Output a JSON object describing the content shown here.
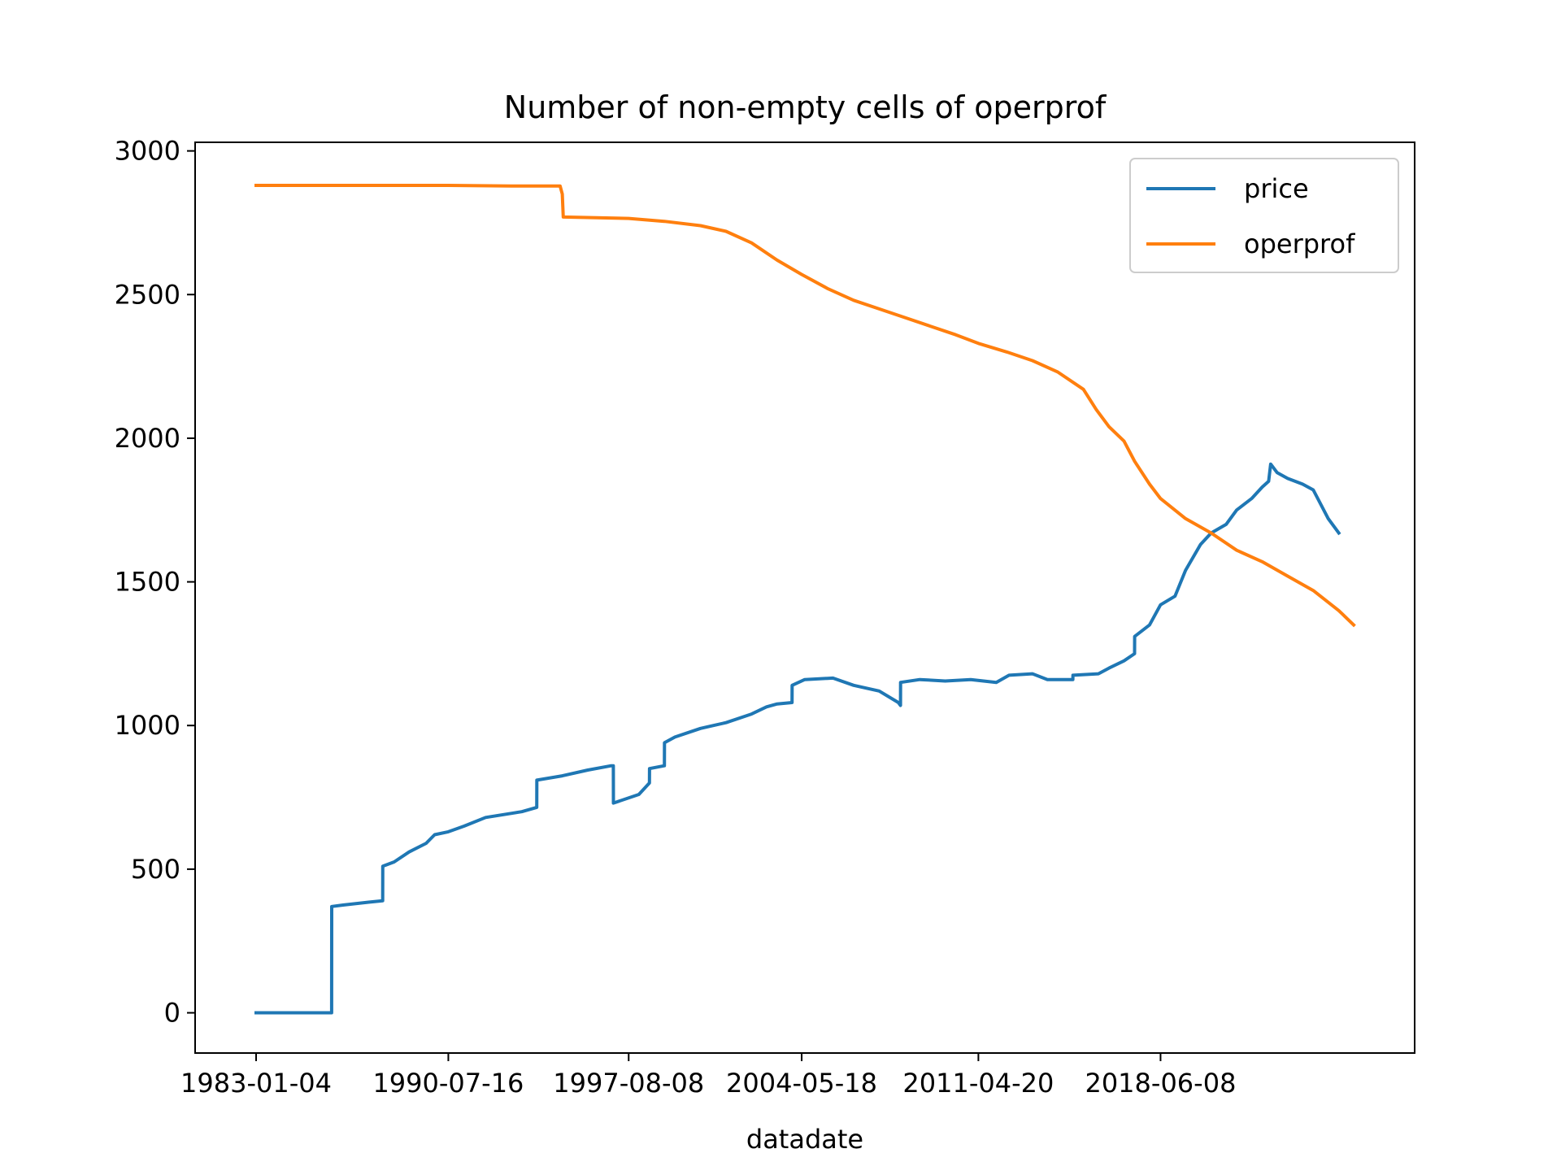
{
  "chart_data": {
    "type": "line",
    "title": "Number of non-empty cells of operprof",
    "xlabel": "datadate",
    "ylabel": "",
    "x_ticks": [
      "1983-01-04",
      "1990-07-16",
      "1997-08-08",
      "2004-05-18",
      "2011-04-20",
      "2018-06-08"
    ],
    "x_range": [
      "1983-01-04",
      "2025-12-31"
    ],
    "y_ticks": [
      0,
      500,
      1000,
      1500,
      2000,
      2500,
      3000
    ],
    "ylim": [
      -140,
      3030
    ],
    "grid": false,
    "legend_position": "upper right",
    "series": [
      {
        "name": "price",
        "color": "#1f77b4",
        "points": [
          [
            "1983-01-04",
            0
          ],
          [
            "1985-12-20",
            0
          ],
          [
            "1985-12-21",
            370
          ],
          [
            "1986-06-01",
            375
          ],
          [
            "1987-06-01",
            385
          ],
          [
            "1987-12-20",
            390
          ],
          [
            "1987-12-21",
            510
          ],
          [
            "1988-06-01",
            525
          ],
          [
            "1989-01-01",
            560
          ],
          [
            "1989-09-01",
            590
          ],
          [
            "1990-01-01",
            620
          ],
          [
            "1990-07-16",
            630
          ],
          [
            "1991-03-01",
            650
          ],
          [
            "1992-01-01",
            680
          ],
          [
            "1993-06-01",
            700
          ],
          [
            "1994-01-01",
            715
          ],
          [
            "1994-01-02",
            810
          ],
          [
            "1995-01-01",
            825
          ],
          [
            "1996-01-01",
            845
          ],
          [
            "1996-12-01",
            860
          ],
          [
            "1997-01-01",
            860
          ],
          [
            "1997-01-02",
            730
          ],
          [
            "1998-01-01",
            760
          ],
          [
            "1998-06-01",
            800
          ],
          [
            "1998-06-02",
            850
          ],
          [
            "1999-01-01",
            860
          ],
          [
            "1999-01-02",
            940
          ],
          [
            "1999-06-01",
            960
          ],
          [
            "2000-06-01",
            990
          ],
          [
            "2001-06-01",
            1010
          ],
          [
            "2002-06-01",
            1040
          ],
          [
            "2003-01-01",
            1065
          ],
          [
            "2003-06-01",
            1075
          ],
          [
            "2004-01-01",
            1080
          ],
          [
            "2004-01-02",
            1140
          ],
          [
            "2004-07-01",
            1160
          ],
          [
            "2005-08-08",
            1165
          ],
          [
            "2006-06-01",
            1140
          ],
          [
            "2007-06-01",
            1120
          ],
          [
            "2008-03-01",
            1080
          ],
          [
            "2008-04-01",
            1070
          ],
          [
            "2008-04-02",
            1150
          ],
          [
            "2009-01-01",
            1160
          ],
          [
            "2010-01-01",
            1155
          ],
          [
            "2011-01-01",
            1160
          ],
          [
            "2012-01-01",
            1150
          ],
          [
            "2012-07-01",
            1175
          ],
          [
            "2013-06-01",
            1180
          ],
          [
            "2014-01-01",
            1160
          ],
          [
            "2015-01-01",
            1160
          ],
          [
            "2015-01-02",
            1175
          ],
          [
            "2016-01-01",
            1180
          ],
          [
            "2016-06-01",
            1200
          ],
          [
            "2017-01-01",
            1225
          ],
          [
            "2017-06-01",
            1250
          ],
          [
            "2017-06-02",
            1310
          ],
          [
            "2018-01-01",
            1350
          ],
          [
            "2018-06-08",
            1420
          ],
          [
            "2019-01-01",
            1450
          ],
          [
            "2019-06-01",
            1540
          ],
          [
            "2020-01-01",
            1630
          ],
          [
            "2020-06-01",
            1670
          ],
          [
            "2021-01-01",
            1700
          ],
          [
            "2021-06-01",
            1750
          ],
          [
            "2022-01-01",
            1790
          ],
          [
            "2022-06-01",
            1830
          ],
          [
            "2022-09-01",
            1850
          ],
          [
            "2022-10-01",
            1910
          ],
          [
            "2023-01-01",
            1880
          ],
          [
            "2023-06-01",
            1860
          ],
          [
            "2024-01-01",
            1840
          ],
          [
            "2024-06-01",
            1820
          ],
          [
            "2025-01-01",
            1720
          ],
          [
            "2025-06-01",
            1670
          ]
        ]
      },
      {
        "name": "operprof",
        "color": "#ff7f0e",
        "points": [
          [
            "1983-01-04",
            2880
          ],
          [
            "1990-07-16",
            2880
          ],
          [
            "1993-01-01",
            2878
          ],
          [
            "1994-12-01",
            2878
          ],
          [
            "1995-01-01",
            2850
          ],
          [
            "1995-01-15",
            2770
          ],
          [
            "1997-08-08",
            2765
          ],
          [
            "1999-01-01",
            2755
          ],
          [
            "2000-06-01",
            2740
          ],
          [
            "2001-06-01",
            2720
          ],
          [
            "2002-06-01",
            2680
          ],
          [
            "2003-06-01",
            2620
          ],
          [
            "2004-05-18",
            2570
          ],
          [
            "2005-06-01",
            2520
          ],
          [
            "2006-06-01",
            2480
          ],
          [
            "2007-06-01",
            2450
          ],
          [
            "2008-06-01",
            2420
          ],
          [
            "2009-06-01",
            2390
          ],
          [
            "2010-06-01",
            2360
          ],
          [
            "2011-04-20",
            2330
          ],
          [
            "2012-06-01",
            2300
          ],
          [
            "2013-06-01",
            2270
          ],
          [
            "2014-06-01",
            2230
          ],
          [
            "2015-06-01",
            2170
          ],
          [
            "2015-12-01",
            2100
          ],
          [
            "2016-06-01",
            2040
          ],
          [
            "2017-01-01",
            1990
          ],
          [
            "2017-06-01",
            1920
          ],
          [
            "2018-01-01",
            1840
          ],
          [
            "2018-06-08",
            1790
          ],
          [
            "2019-06-01",
            1720
          ],
          [
            "2020-06-01",
            1670
          ],
          [
            "2021-06-01",
            1610
          ],
          [
            "2022-06-01",
            1570
          ],
          [
            "2023-06-01",
            1520
          ],
          [
            "2024-06-01",
            1470
          ],
          [
            "2025-06-01",
            1400
          ],
          [
            "2025-12-31",
            1350
          ]
        ]
      }
    ]
  }
}
